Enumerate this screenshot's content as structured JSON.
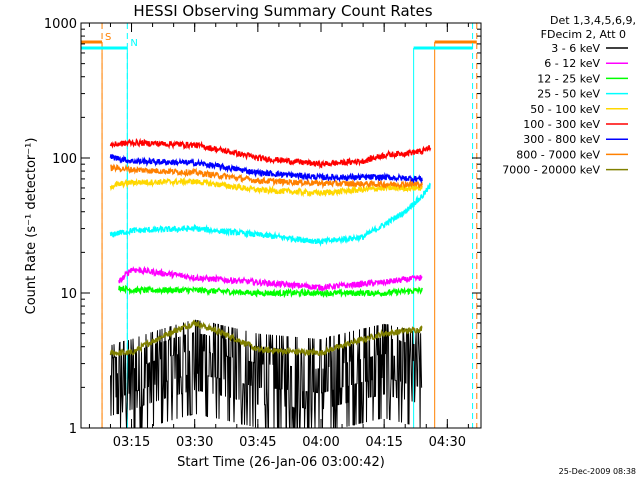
{
  "chart_data": {
    "type": "line",
    "title": "HESSI Observing Summary Count Rates",
    "xlabel": "Start Time (26-Jan-06 03:00:42)",
    "ylabel": "Count Rate (s⁻¹ detector⁻¹)",
    "y_scale": "log",
    "ylim": [
      1,
      1000
    ],
    "xlim": [
      "03:03",
      "04:38"
    ],
    "y_ticks": [
      {
        "value": 1,
        "label": "1"
      },
      {
        "value": 10,
        "label": "10"
      },
      {
        "value": 100,
        "label": "100"
      },
      {
        "value": 1000,
        "label": "1000"
      }
    ],
    "x_ticks": [
      {
        "value": "03:15",
        "label": "03:15"
      },
      {
        "value": "03:30",
        "label": "03:30"
      },
      {
        "value": "03:45",
        "label": "03:45"
      },
      {
        "value": "04:00",
        "label": "04:00"
      },
      {
        "value": "04:15",
        "label": "04:15"
      },
      {
        "value": "04:30",
        "label": "04:30"
      }
    ],
    "legend": {
      "placement": "right",
      "header": [
        "Det 1,3,4,5,6,9,",
        "FDecim 2, Att 0"
      ]
    },
    "markers": [
      {
        "label": "S",
        "color": "#ff8000",
        "solid_from": "03:03",
        "solid_to": "03:08",
        "dashed_at": "03:08",
        "solid_from_2": "04:27",
        "solid_to_2": "04:37",
        "dashed_at_2": "04:37"
      },
      {
        "label": "N",
        "color": "#00ffff",
        "solid_from": "03:03",
        "solid_to": "03:14",
        "dashed_at": "03:14",
        "solid_from_2": "04:22",
        "solid_to_2": "04:36",
        "dashed_at_2": "04:36"
      }
    ],
    "data_window": [
      "03:10",
      "04:26"
    ],
    "series": [
      {
        "name": "3 - 6 keV",
        "color": "#000000",
        "style": "noisy",
        "x": [
          "03:10",
          "03:15",
          "03:30",
          "03:45",
          "04:00",
          "04:15",
          "04:24"
        ],
        "y": [
          1.8,
          2.0,
          2.8,
          2.2,
          2.0,
          2.6,
          2.2
        ]
      },
      {
        "name": "6 - 12 keV",
        "color": "#ff00ff",
        "x": [
          "03:12",
          "03:15",
          "03:30",
          "03:45",
          "04:00",
          "04:15",
          "04:24"
        ],
        "y": [
          12,
          15,
          13,
          12,
          11,
          12,
          13
        ]
      },
      {
        "name": "12 - 25 keV",
        "color": "#00ff00",
        "x": [
          "03:12",
          "03:15",
          "03:30",
          "03:45",
          "04:00",
          "04:15",
          "04:24"
        ],
        "y": [
          11,
          10.5,
          10.5,
          10,
          10,
          10,
          10.5
        ]
      },
      {
        "name": "25 - 50 keV",
        "color": "#00ffff",
        "x": [
          "03:10",
          "03:15",
          "03:30",
          "03:45",
          "04:00",
          "04:10",
          "04:15",
          "04:20",
          "04:24",
          "04:26"
        ],
        "y": [
          27,
          29,
          30,
          27,
          24,
          26,
          32,
          40,
          52,
          62
        ]
      },
      {
        "name": "50 - 100 keV",
        "color": "#ffd700",
        "x": [
          "03:10",
          "03:15",
          "03:30",
          "03:45",
          "04:00",
          "04:15",
          "04:24"
        ],
        "y": [
          62,
          66,
          67,
          58,
          55,
          60,
          60
        ]
      },
      {
        "name": "100 - 300 keV",
        "color": "#ff0000",
        "x": [
          "03:10",
          "03:15",
          "03:30",
          "03:45",
          "04:00",
          "04:10",
          "04:15",
          "04:24",
          "04:26"
        ],
        "y": [
          125,
          130,
          125,
          100,
          90,
          95,
          105,
          112,
          120
        ]
      },
      {
        "name": "300 - 800 keV",
        "color": "#0000ff",
        "x": [
          "03:10",
          "03:15",
          "03:30",
          "03:45",
          "04:00",
          "04:15",
          "04:24"
        ],
        "y": [
          102,
          95,
          92,
          78,
          72,
          72,
          70
        ]
      },
      {
        "name": "800 - 7000 keV",
        "color": "#ff8000",
        "x": [
          "03:10",
          "03:15",
          "03:30",
          "03:45",
          "04:00",
          "04:15",
          "04:24"
        ],
        "y": [
          85,
          82,
          78,
          68,
          65,
          64,
          64
        ]
      },
      {
        "name": "7000 - 20000 keV",
        "color": "#808000",
        "x": [
          "03:10",
          "03:15",
          "03:30",
          "03:45",
          "04:00",
          "04:15",
          "04:24"
        ],
        "y": [
          3.6,
          3.6,
          6.0,
          3.8,
          3.6,
          5.0,
          5.4
        ]
      }
    ]
  },
  "timestamp": "25-Dec-2009 08:38"
}
